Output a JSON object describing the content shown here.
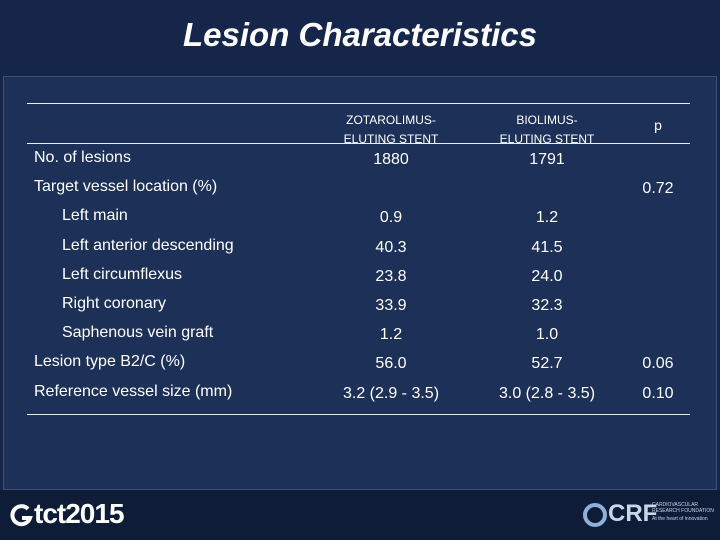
{
  "title": "Lesion Characteristics",
  "table": {
    "header": [
      null,
      [
        "ZOTAROLIMUS-",
        "ELUTING STENT"
      ],
      [
        "BIOLIMUS-",
        "ELUTING STENT"
      ],
      "p"
    ],
    "rows": [
      {
        "cells": [
          "No. of lesions",
          "1880",
          "1791",
          null
        ]
      },
      {
        "cells": [
          "Target vessel location (%)",
          null,
          null,
          "0.72"
        ],
        "subrows": [
          {
            "cells": [
              "Left main",
              "0.9",
              "1.2",
              null
            ]
          },
          {
            "cells": [
              "Left anterior descending",
              "40.3",
              "41.5",
              null
            ]
          },
          {
            "cells": [
              "Left circumflexus",
              "23.8",
              "24.0",
              null
            ]
          },
          {
            "cells": [
              "Right coronary",
              "33.9",
              "32.3",
              null
            ]
          },
          {
            "cells": [
              "Saphenous vein graft",
              "1.2",
              "1.0",
              null
            ]
          }
        ]
      },
      {
        "cells": [
          "Lesion type B2/C (%)",
          "56.0",
          "52.7",
          "0.06"
        ]
      },
      {
        "cells": [
          "Reference vessel size (mm)",
          "3.2 (2.9 - 3.5)",
          "3.0 (2.8 - 3.5)",
          "0.10"
        ]
      }
    ]
  },
  "footer": {
    "left_logo": "tct2015",
    "right_logo": "CRF",
    "right_logo_name": "CARDIOVASCULAR RESEARCH FOUNDATION",
    "right_logo_tagline": "At the heart of innovation"
  }
}
